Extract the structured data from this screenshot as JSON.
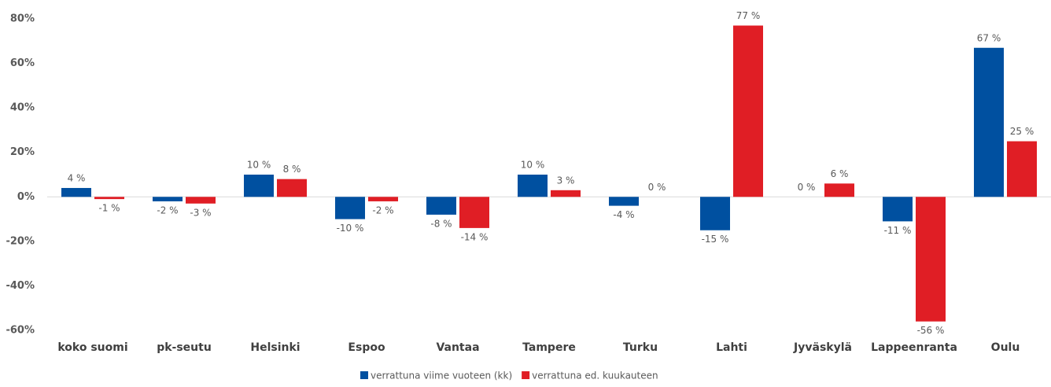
{
  "chart_data": {
    "type": "bar",
    "categories": [
      "koko suomi",
      "pk-seutu",
      "Helsinki",
      "Espoo",
      "Vantaa",
      "Tampere",
      "Turku",
      "Lahti",
      "Jyväskylä",
      "Lappeenranta",
      "Oulu"
    ],
    "series": [
      {
        "name": "verrattuna viime vuoteen (kk)",
        "color": "#0050a0",
        "values": [
          4,
          -2,
          10,
          -10,
          -8,
          10,
          -4,
          -15,
          0,
          -11,
          67
        ],
        "value_labels": [
          "4 %",
          "-2 %",
          "10 %",
          "-10 %",
          "-8 %",
          "10 %",
          "-4 %",
          "-15 %",
          "0 %",
          "-11 %",
          "67 %"
        ]
      },
      {
        "name": "verrattuna ed. kuukauteen",
        "color": "#e01e25",
        "values": [
          -1,
          -3,
          8,
          -2,
          -14,
          3,
          0,
          77,
          6,
          -56,
          25
        ],
        "value_labels": [
          "-1 %",
          "-3 %",
          "8 %",
          "-2 %",
          "-14 %",
          "3 %",
          "0 %",
          "77 %",
          "6 %",
          "-56 %",
          "25 %"
        ]
      }
    ],
    "ylim": [
      -60,
      80
    ],
    "yticks": [
      {
        "value": -60,
        "label": "-60%"
      },
      {
        "value": -40,
        "label": "-40%"
      },
      {
        "value": -20,
        "label": "-20%"
      },
      {
        "value": 0,
        "label": "0%"
      },
      {
        "value": 20,
        "label": "20%"
      },
      {
        "value": 40,
        "label": "40%"
      },
      {
        "value": 60,
        "label": "60%"
      },
      {
        "value": 80,
        "label": "80%"
      }
    ],
    "grid": false,
    "legend": "bottom"
  }
}
